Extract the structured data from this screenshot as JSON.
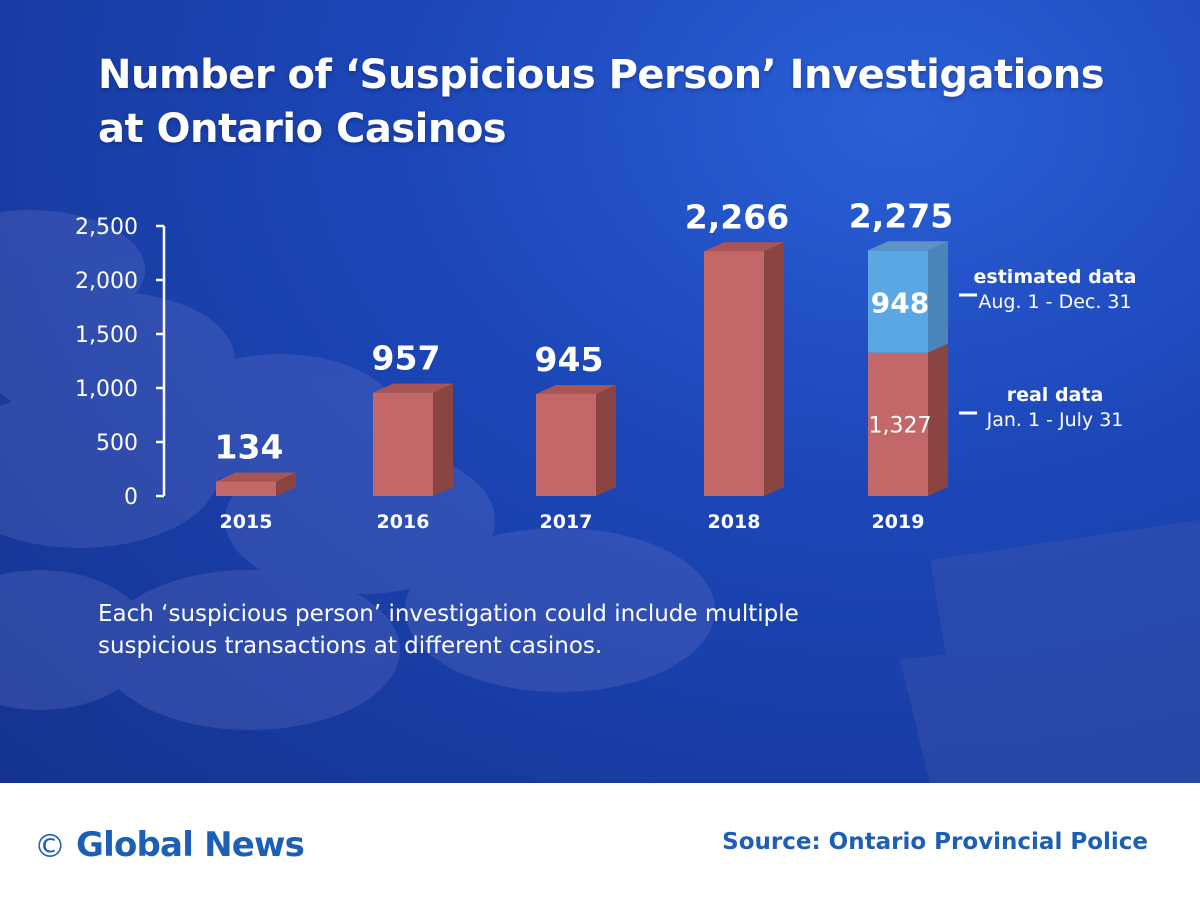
{
  "colors": {
    "bar": "#c36868",
    "bar_side": "#8a4442",
    "bar_top": "#a95554",
    "estimated": "#5aa7e4",
    "estimated_side": "#4a84b8",
    "estimated_top": "#5f93c4",
    "brand": "#1d5fb6"
  },
  "title": "Number of ‘Suspicious Person’ Investigations at Ontario Casinos",
  "note": "Each ‘suspicious person’ investigation could include multiple suspicious transactions at different casinos.",
  "chart_data": {
    "type": "bar",
    "categories": [
      "2015",
      "2016",
      "2017",
      "2018",
      "2019"
    ],
    "values": [
      134,
      957,
      945,
      2266,
      2275
    ],
    "value_labels": [
      "134",
      "957",
      "945",
      "2,266",
      "2,275"
    ],
    "ylim": [
      0,
      2500
    ],
    "yticks": [
      0,
      500,
      1000,
      1500,
      2000,
      2500
    ],
    "ytick_labels": [
      "0",
      "500",
      "1,000",
      "1,500",
      "2,000",
      "2,500"
    ],
    "grid": false,
    "stacked": {
      "category": "2019",
      "segments": [
        {
          "name": "real data",
          "range": "Jan. 1 - July 31",
          "value": 1327,
          "label": "1,327"
        },
        {
          "name": "estimated data",
          "range": "Aug. 1 - Dec. 31",
          "value": 948,
          "label": "948"
        }
      ]
    }
  },
  "footer": {
    "copyright_symbol": "©",
    "brand": "Global News",
    "source": "Source: Ontario Provincial Police"
  }
}
